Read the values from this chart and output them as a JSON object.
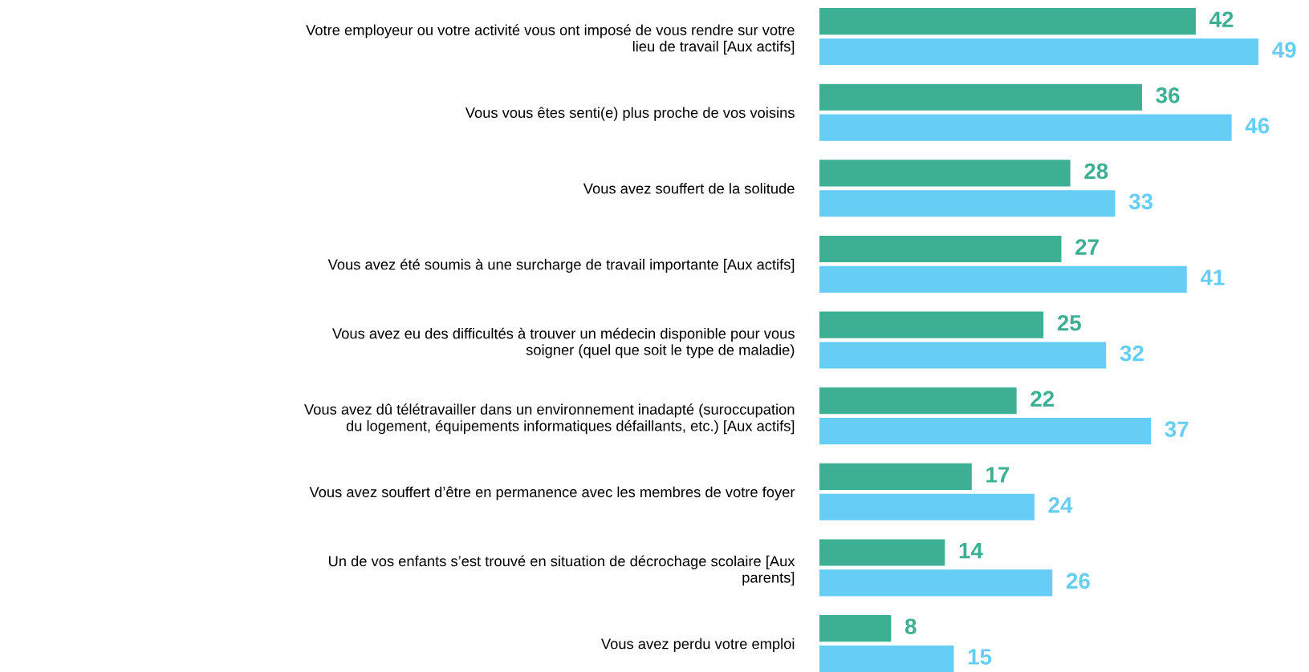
{
  "chart_data": {
    "type": "bar",
    "orientation": "horizontal",
    "categories": [
      "Votre employeur ou votre activité vous ont imposé de vous rendre sur votre\nlieu de travail [Aux actifs]",
      "Vous vous êtes senti(e) plus proche de vos voisins",
      "Vous avez souffert de la solitude",
      "Vous avez été soumis à une surcharge de travail importante [Aux actifs]",
      "Vous avez eu des difficultés à trouver un médecin disponible pour vous\nsoigner (quel que soit le type de maladie)",
      "Vous avez dû télétravailler dans un environnement inadapté (suroccupation\ndu logement, équipements informatiques défaillants, etc.) [Aux actifs]",
      "Vous avez souffert d’être en permanence avec les membres de votre foyer",
      "Un de vos enfants s’est trouvé en situation de décrochage scolaire [Aux\nparents]",
      "Vous avez perdu votre emploi"
    ],
    "series": [
      {
        "color": "#3daf92",
        "values": [
          42,
          36,
          28,
          27,
          25,
          22,
          17,
          14,
          8
        ]
      },
      {
        "color": "#66cdf4",
        "values": [
          49,
          46,
          33,
          41,
          32,
          37,
          24,
          26,
          15
        ]
      }
    ],
    "tick_labels": "y",
    "data_labels": true,
    "grid": false
  }
}
